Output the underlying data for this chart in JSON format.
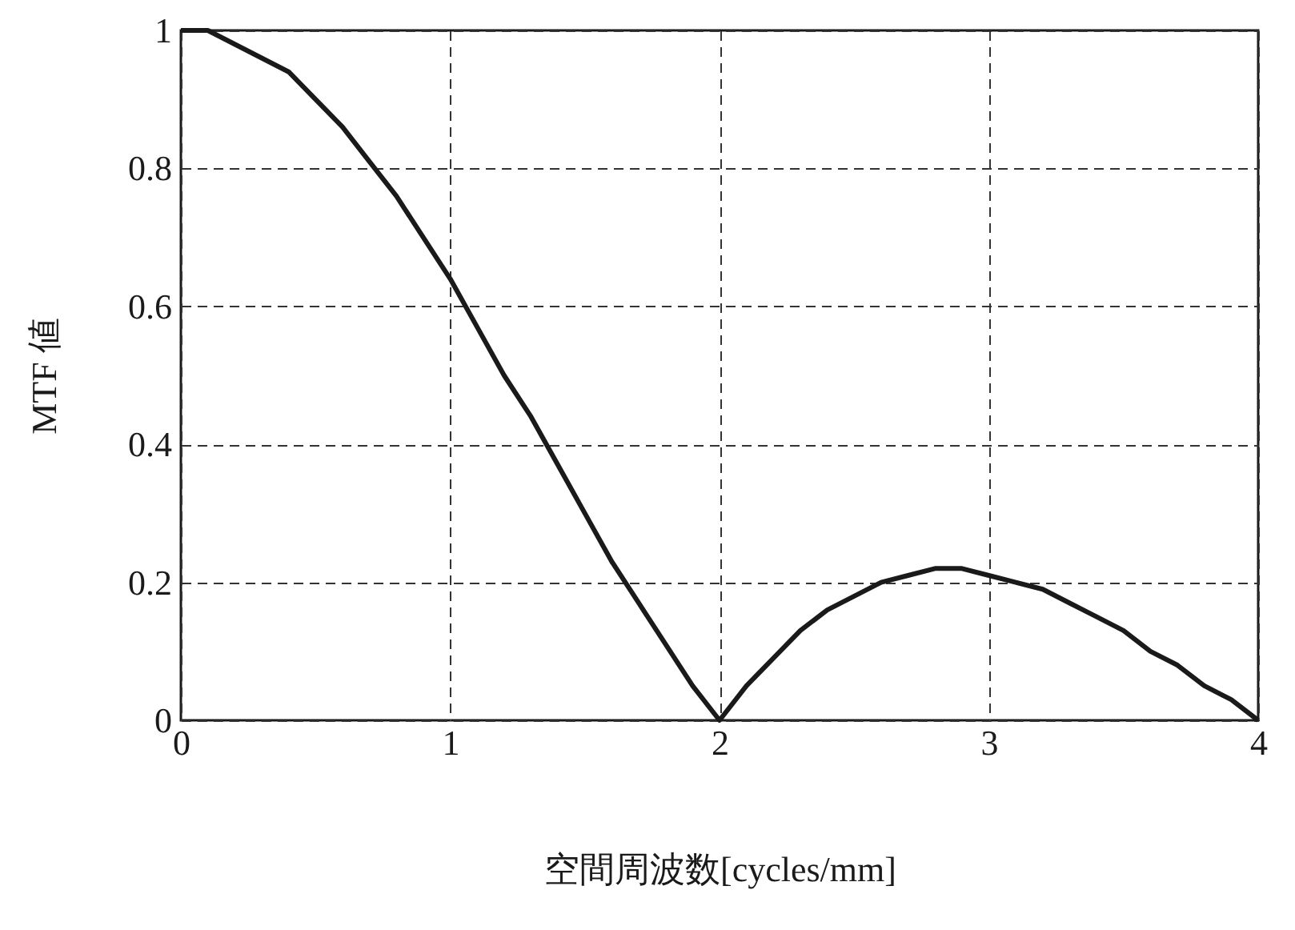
{
  "chart_data": {
    "type": "line",
    "xlabel": "空間周波数[cycles/mm]",
    "ylabel": "MTF 値",
    "x": [
      0,
      0.1,
      0.2,
      0.3,
      0.4,
      0.5,
      0.6,
      0.7,
      0.8,
      0.9,
      1.0,
      1.1,
      1.2,
      1.3,
      1.4,
      1.5,
      1.6,
      1.7,
      1.8,
      1.9,
      2.0,
      2.1,
      2.2,
      2.3,
      2.4,
      2.5,
      2.6,
      2.7,
      2.8,
      2.9,
      3.0,
      3.1,
      3.2,
      3.3,
      3.4,
      3.5,
      3.6,
      3.7,
      3.8,
      3.9,
      4.0
    ],
    "series": [
      {
        "color": "#1a1a1a",
        "values": [
          1,
          1.0,
          0.98,
          0.96,
          0.94,
          0.9,
          0.86,
          0.81,
          0.76,
          0.7,
          0.64,
          0.57,
          0.5,
          0.44,
          0.37,
          0.3,
          0.23,
          0.17,
          0.11,
          0.05,
          0,
          0.05,
          0.09,
          0.13,
          0.16,
          0.18,
          0.2,
          0.21,
          0.22,
          0.22,
          0.21,
          0.2,
          0.19,
          0.17,
          0.15,
          0.13,
          0.1,
          0.08,
          0.05,
          0.03,
          0
        ]
      }
    ],
    "xlim": [
      0,
      4
    ],
    "xticks": [
      0,
      1,
      2,
      3,
      4
    ],
    "ylim": [
      0,
      1
    ],
    "yticks": [
      0,
      0.2,
      0.4,
      0.6,
      0.8,
      1
    ],
    "grid": true,
    "legend": false,
    "marker": "none",
    "line_style": "solid"
  }
}
